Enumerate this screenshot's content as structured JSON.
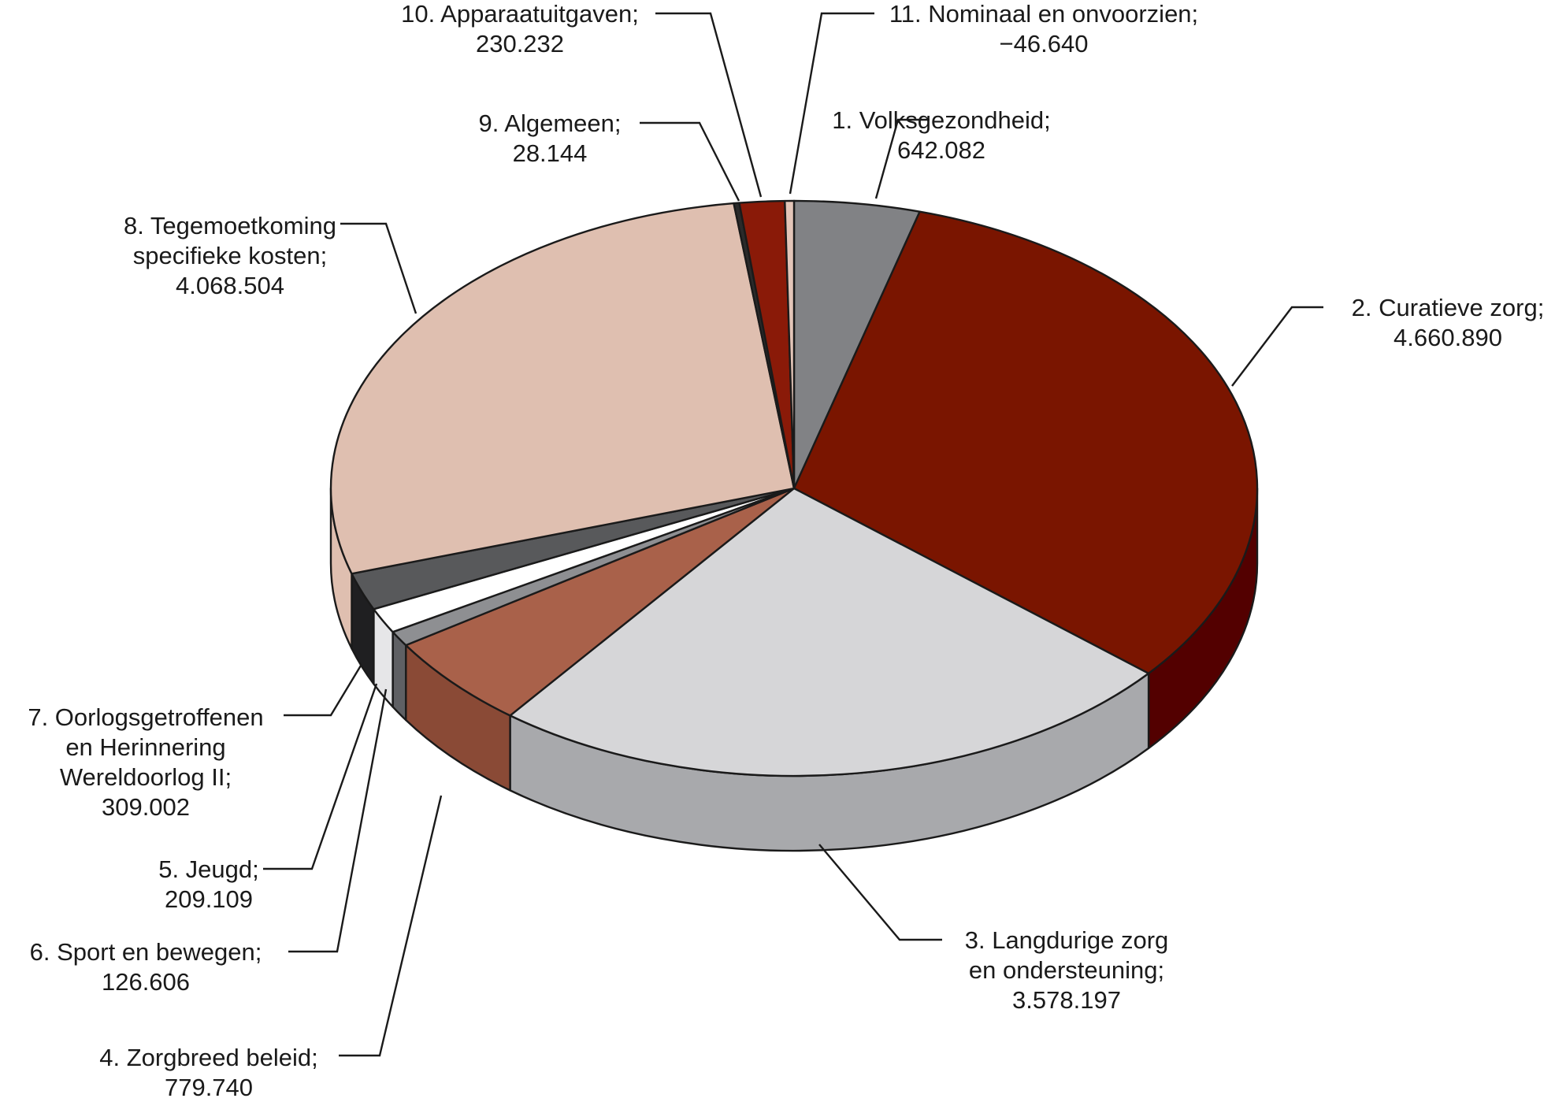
{
  "chart_data": {
    "type": "pie",
    "title": "",
    "slices": [
      {
        "label_lines": [
          "1. Volksgezondheid;",
          "642.082"
        ],
        "name": "1. Volksgezondheid",
        "value": 642082,
        "color": "#818285",
        "side": "#5e5f62"
      },
      {
        "label_lines": [
          "2. Curatieve zorg;",
          "4.660.890"
        ],
        "name": "2. Curatieve zorg",
        "value": 4660890,
        "color": "#7a1500",
        "side": "#530000"
      },
      {
        "label_lines": [
          "3. Langdurige zorg",
          "en ondersteuning;",
          "3.578.197"
        ],
        "name": "3. Langdurige zorg en ondersteuning",
        "value": 3578197,
        "color": "#d6d6d8",
        "side": "#a8a9ac"
      },
      {
        "label_lines": [
          "4. Zorgbreed beleid;",
          "779.740"
        ],
        "name": "4. Zorgbreed beleid",
        "value": 779740,
        "color": "#a9614a",
        "side": "#8a4a36"
      },
      {
        "label_lines": [
          "6. Sport en bewegen;",
          "126.606"
        ],
        "name": "6. Sport en bewegen",
        "value": 126606,
        "color": "#8e8f92",
        "side": "#5f6064"
      },
      {
        "label_lines": [
          "5. Jeugd;",
          "209.109"
        ],
        "name": "5. Jeugd",
        "value": 209109,
        "color": "#ffffff",
        "side": "#e6e6e8"
      },
      {
        "label_lines": [
          "7. Oorlogsgetroffenen",
          "en Herinnering",
          "Wereldoorlog II;",
          "309.002"
        ],
        "name": "7. Oorlogsgetroffenen en Herinnering Wereldoorlog II",
        "value": 309002,
        "color": "#58595b",
        "side": "#1f1f21"
      },
      {
        "label_lines": [
          "8. Tegemoetkoming",
          "specifieke kosten;",
          "4.068.504"
        ],
        "name": "8. Tegemoetkoming specifieke kosten",
        "value": 4068504,
        "color": "#dfbfb0",
        "side": "#dfbfb0"
      },
      {
        "label_lines": [
          "9. Algemeen;",
          "28.144"
        ],
        "name": "9. Algemeen",
        "value": 28144,
        "color": "#2a2a2a",
        "side": "#1a1a1a"
      },
      {
        "label_lines": [
          "10. Apparaatuitgaven;",
          "230.232"
        ],
        "name": "10. Apparaatuitgaven",
        "value": 230232,
        "color": "#8a1a08",
        "side": "#5a0a00"
      },
      {
        "label_lines": [
          "11. Nominaal en onvoorzien;",
          "−46.640"
        ],
        "name": "11. Nominaal en onvoorzien",
        "value": -46640,
        "color": "#e3c5b8",
        "side": "#c9a898"
      }
    ],
    "legend": "none",
    "labels": "outside-with-leader-lines",
    "three_d": true
  }
}
